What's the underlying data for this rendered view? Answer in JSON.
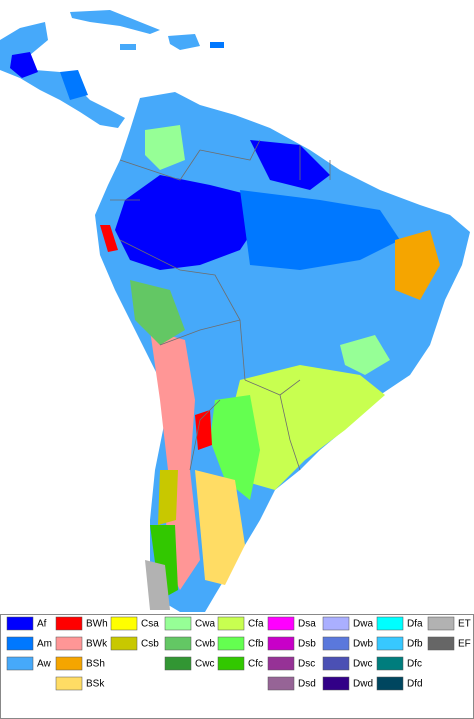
{
  "legend": {
    "groups": [
      {
        "items": [
          {
            "code": "Af",
            "color": "#0000fe"
          },
          {
            "code": "Am",
            "color": "#0078ff"
          },
          {
            "code": "Aw",
            "color": "#46a9fa"
          }
        ]
      },
      {
        "items": [
          {
            "code": "BWh",
            "color": "#ff0000"
          },
          {
            "code": "BWk",
            "color": "#ff9696"
          },
          {
            "code": "BSh",
            "color": "#f5a500"
          },
          {
            "code": "BSk",
            "color": "#ffdc64"
          }
        ]
      },
      {
        "items": [
          {
            "code": "Csa",
            "color": "#ffff00"
          },
          {
            "code": "Csb",
            "color": "#c8c800"
          }
        ]
      },
      {
        "items": [
          {
            "code": "Cwa",
            "color": "#96ff96"
          },
          {
            "code": "Cwb",
            "color": "#63c764"
          },
          {
            "code": "Cwc",
            "color": "#329633"
          }
        ]
      },
      {
        "items": [
          {
            "code": "Cfa",
            "color": "#c8ff50"
          },
          {
            "code": "Cfb",
            "color": "#64ff50"
          },
          {
            "code": "Cfc",
            "color": "#32c800"
          }
        ]
      },
      {
        "items": [
          {
            "code": "Dsa",
            "color": "#ff00ff"
          },
          {
            "code": "Dsb",
            "color": "#c800c8"
          },
          {
            "code": "Dsc",
            "color": "#963296"
          },
          {
            "code": "Dsd",
            "color": "#966496"
          }
        ]
      },
      {
        "items": [
          {
            "code": "Dwa",
            "color": "#aaafff"
          },
          {
            "code": "Dwb",
            "color": "#5a78dc"
          },
          {
            "code": "Dwc",
            "color": "#4b50b4"
          },
          {
            "code": "Dwd",
            "color": "#320087"
          }
        ]
      },
      {
        "items": [
          {
            "code": "Dfa",
            "color": "#00ffff"
          },
          {
            "code": "Dfb",
            "color": "#37c8ff"
          },
          {
            "code": "Dfc",
            "color": "#007d7d"
          },
          {
            "code": "Dfd",
            "color": "#00465f"
          }
        ]
      },
      {
        "items": [
          {
            "code": "ET",
            "color": "#b2b2b2"
          },
          {
            "code": "EF",
            "color": "#666666"
          }
        ]
      }
    ]
  }
}
